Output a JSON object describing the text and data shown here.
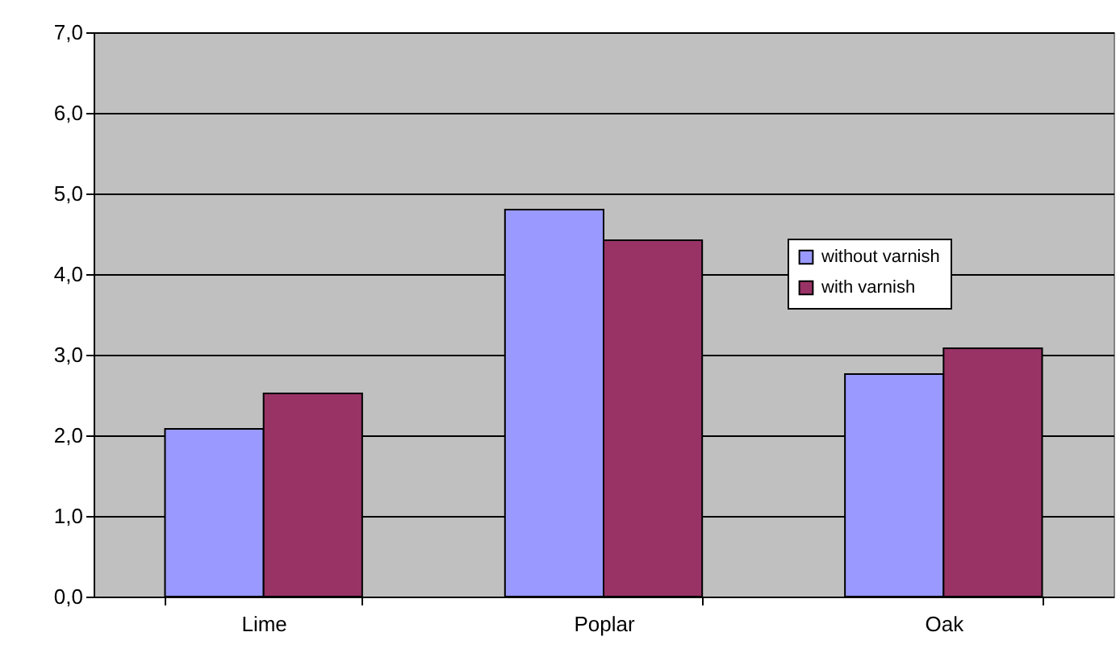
{
  "chart_data": {
    "type": "bar",
    "categories": [
      "Lime",
      "Poplar",
      "Oak"
    ],
    "series": [
      {
        "name": "without varnish",
        "color": "#9999ff",
        "values": [
          2.08,
          4.8,
          2.76
        ]
      },
      {
        "name": "with varnish",
        "color": "#993366",
        "values": [
          2.52,
          4.42,
          3.08
        ]
      }
    ],
    "ylim": [
      0,
      7
    ],
    "yticks": [
      {
        "value": 0,
        "label": "0,0"
      },
      {
        "value": 1,
        "label": "1,0"
      },
      {
        "value": 2,
        "label": "2,0"
      },
      {
        "value": 3,
        "label": "3,0"
      },
      {
        "value": 4,
        "label": "4,0"
      },
      {
        "value": 5,
        "label": "5,0"
      },
      {
        "value": 6,
        "label": "6,0"
      },
      {
        "value": 7,
        "label": "7,0"
      }
    ],
    "grid": "y",
    "legend": "top right"
  }
}
